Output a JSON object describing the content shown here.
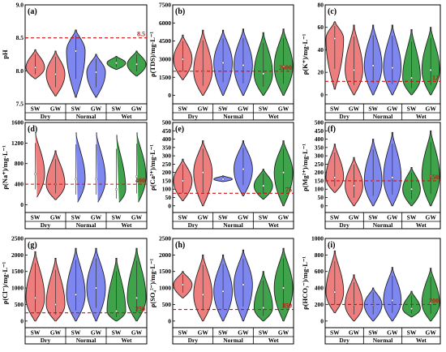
{
  "colors": {
    "SW": "#ee7e7e",
    "Normal_GW": "#7e86f0",
    "Wet_GW": "#3ea34a",
    "Dry_GW": "#ee7e7e",
    "Normal_SW": "#7e86f0",
    "Wet_SW": "#3ea34a",
    "threshold": "#d01010"
  },
  "chart_data": [
    {
      "id": "a",
      "panel_label": "(a)",
      "type": "violin",
      "ylabel": "pH",
      "ylim": [
        7.5,
        9.0
      ],
      "yticks": [
        "7.5",
        "8.0",
        "8.5",
        "9.0"
      ],
      "threshold": 8.5,
      "threshold_label": "8.5",
      "xtick_labels": [
        "SW",
        "GW",
        "SW",
        "GW",
        "SW",
        "GW"
      ],
      "groups": [
        "Dry",
        "Normal",
        "Wet"
      ],
      "violins": [
        {
          "group": "Dry",
          "type": "SW",
          "min": 7.88,
          "max": 8.32,
          "median": 8.05
        },
        {
          "group": "Dry",
          "type": "GW",
          "min": 7.62,
          "max": 8.3,
          "median": 7.95
        },
        {
          "group": "Normal",
          "type": "SW",
          "min": 7.6,
          "max": 8.62,
          "median": 8.3
        },
        {
          "group": "Normal",
          "type": "GW",
          "min": 7.6,
          "max": 8.25,
          "median": 7.98
        },
        {
          "group": "Wet",
          "type": "SW",
          "min": 8.02,
          "max": 8.22,
          "median": 8.12
        },
        {
          "group": "Wet",
          "type": "GW",
          "min": 7.92,
          "max": 8.3,
          "median": 8.1
        }
      ]
    },
    {
      "id": "b",
      "panel_label": "(b)",
      "type": "violin",
      "ylabel": "ρ(TDS)/mg·L⁻¹",
      "ylim": [
        -700,
        7500
      ],
      "yticks": [
        "0",
        "1500",
        "3000",
        "4500",
        "6000",
        "7500"
      ],
      "threshold": 2000,
      "threshold_label": "2000",
      "xtick_labels": [
        "SW",
        "GW",
        "SW",
        "GW",
        "SW",
        "GW"
      ],
      "groups": [
        "Dry",
        "Normal",
        "Wet"
      ],
      "violins": [
        {
          "group": "Dry",
          "type": "SW",
          "min": 1300,
          "max": 5000,
          "median": 3000
        },
        {
          "group": "Dry",
          "type": "GW",
          "min": 0,
          "max": 5400,
          "median": 2000
        },
        {
          "group": "Normal",
          "type": "SW",
          "min": 0,
          "max": 5400,
          "median": 2700
        },
        {
          "group": "Normal",
          "type": "GW",
          "min": 0,
          "max": 5500,
          "median": 2500
        },
        {
          "group": "Wet",
          "type": "SW",
          "min": 0,
          "max": 5200,
          "median": 1800
        },
        {
          "group": "Wet",
          "type": "GW",
          "min": 0,
          "max": 5500,
          "median": 2400
        }
      ]
    },
    {
      "id": "c",
      "panel_label": "(c)",
      "type": "violin",
      "ylabel": "ρ(K⁺)/mg·L⁻¹",
      "ylim": [
        -8,
        80
      ],
      "yticks": [
        "0",
        "20",
        "40",
        "60",
        "80"
      ],
      "threshold": 12,
      "threshold_label": "12",
      "xtick_labels": [
        "SW",
        "GW",
        "SW",
        "GW",
        "SW",
        "GW"
      ],
      "groups": [
        "Dry",
        "Normal",
        "Wet"
      ],
      "violins": [
        {
          "group": "Dry",
          "type": "SW",
          "min": 5,
          "max": 65,
          "median": 50
        },
        {
          "group": "Dry",
          "type": "GW",
          "min": 0,
          "max": 62,
          "median": 22
        },
        {
          "group": "Normal",
          "type": "SW",
          "min": 0,
          "max": 62,
          "median": 26
        },
        {
          "group": "Normal",
          "type": "GW",
          "min": 0,
          "max": 62,
          "median": 24
        },
        {
          "group": "Wet",
          "type": "SW",
          "min": 0,
          "max": 58,
          "median": 15
        },
        {
          "group": "Wet",
          "type": "GW",
          "min": 0,
          "max": 60,
          "median": 22
        }
      ]
    },
    {
      "id": "d",
      "panel_label": "(d)",
      "type": "violin",
      "ylabel": "ρ(Na⁺)/mg·L⁻¹",
      "ylim": [
        -150,
        1600
      ],
      "yticks": [
        "0",
        "400",
        "800",
        "1200",
        "1600"
      ],
      "threshold": 400,
      "threshold_label": "400",
      "xtick_labels": [
        "SW",
        "GW",
        "SW",
        "GW",
        "SW",
        "GW"
      ],
      "groups": [
        "Dry",
        "Normal",
        "Wet"
      ],
      "violins": [
        {
          "group": "Dry",
          "type": "SW",
          "min": 100,
          "max": 1400,
          "median": 600
        },
        {
          "group": "Dry",
          "type": "GW",
          "min": 100,
          "max": 1050,
          "median": 400
        },
        {
          "group": "Normal",
          "type": "SW",
          "min": 0,
          "max": 1400,
          "median": 500
        },
        {
          "group": "Normal",
          "type": "GW",
          "min": 0,
          "max": 1400,
          "median": 500
        },
        {
          "group": "Wet",
          "type": "SW",
          "min": 0,
          "max": 1350,
          "median": 300
        },
        {
          "group": "Wet",
          "type": "GW",
          "min": 0,
          "max": 1400,
          "median": 550
        }
      ]
    },
    {
      "id": "e",
      "panel_label": "(e)",
      "type": "violin",
      "ylabel": "ρ(Ca²⁺)/mg·L⁻¹",
      "ylim": [
        -40,
        500
      ],
      "yticks": [
        "0",
        "50",
        "100",
        "150",
        "200",
        "250",
        "300",
        "350",
        "400",
        "450",
        "500"
      ],
      "threshold": 75,
      "threshold_label": "75",
      "xtick_labels": [
        "SW",
        "GW",
        "SW",
        "GW",
        "SW",
        "GW"
      ],
      "groups": [
        "Dry",
        "Normal",
        "Wet"
      ],
      "violins": [
        {
          "group": "Dry",
          "type": "SW",
          "min": 30,
          "max": 280,
          "median": 150
        },
        {
          "group": "Dry",
          "type": "GW",
          "min": 0,
          "max": 390,
          "median": 200
        },
        {
          "group": "Normal",
          "type": "SW",
          "min": 145,
          "max": 180,
          "median": 160
        },
        {
          "group": "Normal",
          "type": "GW",
          "min": 60,
          "max": 390,
          "median": 220
        },
        {
          "group": "Wet",
          "type": "SW",
          "min": 40,
          "max": 220,
          "median": 120
        },
        {
          "group": "Wet",
          "type": "GW",
          "min": 0,
          "max": 390,
          "median": 200
        }
      ]
    },
    {
      "id": "f",
      "panel_label": "(f)",
      "type": "violin",
      "ylabel": "ρ(Mg²⁺)/mg·L⁻¹",
      "ylim": [
        -40,
        500
      ],
      "yticks": [
        "0",
        "50",
        "100",
        "150",
        "200",
        "250",
        "300",
        "350",
        "400",
        "450",
        "500"
      ],
      "threshold": 150,
      "threshold_label": "150",
      "xtick_labels": [
        "SW",
        "GW",
        "SW",
        "GW",
        "SW",
        "GW"
      ],
      "groups": [
        "Dry",
        "Normal",
        "Wet"
      ],
      "violins": [
        {
          "group": "Dry",
          "type": "SW",
          "min": 80,
          "max": 370,
          "median": 170
        },
        {
          "group": "Dry",
          "type": "GW",
          "min": 0,
          "max": 290,
          "median": 120
        },
        {
          "group": "Normal",
          "type": "SW",
          "min": 0,
          "max": 400,
          "median": 150
        },
        {
          "group": "Normal",
          "type": "GW",
          "min": 0,
          "max": 440,
          "median": 170
        },
        {
          "group": "Wet",
          "type": "SW",
          "min": 0,
          "max": 230,
          "median": 100
        },
        {
          "group": "Wet",
          "type": "GW",
          "min": 0,
          "max": 450,
          "median": 180
        }
      ]
    },
    {
      "id": "g",
      "panel_label": "(g)",
      "type": "violin",
      "ylabel": "ρ(Cl⁻)/mg·L⁻¹",
      "ylim": [
        -200,
        2500
      ],
      "yticks": [
        "0",
        "500",
        "1000",
        "1500",
        "2000",
        "2500"
      ],
      "threshold": 250,
      "threshold_label": "250",
      "xtick_labels": [
        "SW",
        "GW",
        "SW",
        "GW",
        "SW",
        "GW"
      ],
      "groups": [
        "Dry",
        "Normal",
        "Wet"
      ],
      "violins": [
        {
          "group": "Dry",
          "type": "SW",
          "min": 0,
          "max": 2100,
          "median": 700
        },
        {
          "group": "Dry",
          "type": "GW",
          "min": 0,
          "max": 1900,
          "median": 500
        },
        {
          "group": "Normal",
          "type": "SW",
          "min": 0,
          "max": 2200,
          "median": 800
        },
        {
          "group": "Normal",
          "type": "GW",
          "min": 0,
          "max": 2200,
          "median": 1000
        },
        {
          "group": "Wet",
          "type": "SW",
          "min": 0,
          "max": 1900,
          "median": 300
        },
        {
          "group": "Wet",
          "type": "GW",
          "min": 0,
          "max": 2200,
          "median": 700
        }
      ]
    },
    {
      "id": "h",
      "panel_label": "(h)",
      "type": "violin",
      "ylabel": "ρ(SO₄²⁻)/mg·L⁻¹",
      "ylim": [
        -200,
        2500
      ],
      "yticks": [
        "0",
        "500",
        "1000",
        "1500",
        "2000",
        "2500"
      ],
      "threshold": 350,
      "threshold_label": "350",
      "xtick_labels": [
        "SW",
        "GW",
        "SW",
        "GW",
        "SW",
        "GW"
      ],
      "groups": [
        "Dry",
        "Normal",
        "Wet"
      ],
      "violins": [
        {
          "group": "Dry",
          "type": "SW",
          "min": 700,
          "max": 1500,
          "median": 1100
        },
        {
          "group": "Dry",
          "type": "GW",
          "min": 0,
          "max": 2000,
          "median": 800
        },
        {
          "group": "Normal",
          "type": "SW",
          "min": 0,
          "max": 2000,
          "median": 900
        },
        {
          "group": "Normal",
          "type": "GW",
          "min": 0,
          "max": 2150,
          "median": 1100
        },
        {
          "group": "Wet",
          "type": "SW",
          "min": 0,
          "max": 1500,
          "median": 400
        },
        {
          "group": "Wet",
          "type": "GW",
          "min": 0,
          "max": 2200,
          "median": 1000
        }
      ]
    },
    {
      "id": "i",
      "panel_label": "(i)",
      "type": "violin",
      "ylabel": "ρ(HCO₃⁻)/mg·L⁻¹",
      "ylim": [
        -80,
        1000
      ],
      "yticks": [
        "0",
        "200",
        "400",
        "600",
        "800",
        "1000"
      ],
      "threshold": 200,
      "threshold_label": "200",
      "xtick_labels": [
        "SW",
        "GW",
        "SW",
        "GW",
        "SW",
        "GW"
      ],
      "groups": [
        "Dry",
        "Normal",
        "Wet"
      ],
      "violins": [
        {
          "group": "Dry",
          "type": "SW",
          "min": 100,
          "max": 850,
          "median": 350
        },
        {
          "group": "Dry",
          "type": "GW",
          "min": 0,
          "max": 560,
          "median": 200
        },
        {
          "group": "Normal",
          "type": "SW",
          "min": 0,
          "max": 400,
          "median": 200
        },
        {
          "group": "Normal",
          "type": "GW",
          "min": 0,
          "max": 650,
          "median": 250
        },
        {
          "group": "Wet",
          "type": "SW",
          "min": 50,
          "max": 360,
          "median": 150
        },
        {
          "group": "Wet",
          "type": "GW",
          "min": 0,
          "max": 640,
          "median": 220
        }
      ]
    }
  ]
}
